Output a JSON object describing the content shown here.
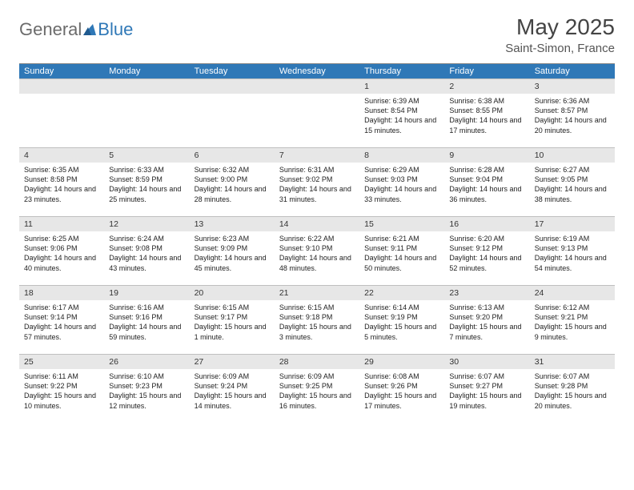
{
  "brand": {
    "part1": "General",
    "part2": "Blue"
  },
  "title": "May 2025",
  "location": "Saint-Simon, France",
  "colors": {
    "header_bg": "#2f78b7",
    "header_text": "#ffffff",
    "daynum_bg": "#e7e7e7",
    "border": "#bfbfbf",
    "text": "#222222",
    "logo_gray": "#6b6b6b",
    "logo_blue": "#2f78b7"
  },
  "weekdays": [
    "Sunday",
    "Monday",
    "Tuesday",
    "Wednesday",
    "Thursday",
    "Friday",
    "Saturday"
  ],
  "weeks": [
    [
      {
        "n": "",
        "sr": "",
        "ss": "",
        "dl": ""
      },
      {
        "n": "",
        "sr": "",
        "ss": "",
        "dl": ""
      },
      {
        "n": "",
        "sr": "",
        "ss": "",
        "dl": ""
      },
      {
        "n": "",
        "sr": "",
        "ss": "",
        "dl": ""
      },
      {
        "n": "1",
        "sr": "Sunrise: 6:39 AM",
        "ss": "Sunset: 8:54 PM",
        "dl": "Daylight: 14 hours and 15 minutes."
      },
      {
        "n": "2",
        "sr": "Sunrise: 6:38 AM",
        "ss": "Sunset: 8:55 PM",
        "dl": "Daylight: 14 hours and 17 minutes."
      },
      {
        "n": "3",
        "sr": "Sunrise: 6:36 AM",
        "ss": "Sunset: 8:57 PM",
        "dl": "Daylight: 14 hours and 20 minutes."
      }
    ],
    [
      {
        "n": "4",
        "sr": "Sunrise: 6:35 AM",
        "ss": "Sunset: 8:58 PM",
        "dl": "Daylight: 14 hours and 23 minutes."
      },
      {
        "n": "5",
        "sr": "Sunrise: 6:33 AM",
        "ss": "Sunset: 8:59 PM",
        "dl": "Daylight: 14 hours and 25 minutes."
      },
      {
        "n": "6",
        "sr": "Sunrise: 6:32 AM",
        "ss": "Sunset: 9:00 PM",
        "dl": "Daylight: 14 hours and 28 minutes."
      },
      {
        "n": "7",
        "sr": "Sunrise: 6:31 AM",
        "ss": "Sunset: 9:02 PM",
        "dl": "Daylight: 14 hours and 31 minutes."
      },
      {
        "n": "8",
        "sr": "Sunrise: 6:29 AM",
        "ss": "Sunset: 9:03 PM",
        "dl": "Daylight: 14 hours and 33 minutes."
      },
      {
        "n": "9",
        "sr": "Sunrise: 6:28 AM",
        "ss": "Sunset: 9:04 PM",
        "dl": "Daylight: 14 hours and 36 minutes."
      },
      {
        "n": "10",
        "sr": "Sunrise: 6:27 AM",
        "ss": "Sunset: 9:05 PM",
        "dl": "Daylight: 14 hours and 38 minutes."
      }
    ],
    [
      {
        "n": "11",
        "sr": "Sunrise: 6:25 AM",
        "ss": "Sunset: 9:06 PM",
        "dl": "Daylight: 14 hours and 40 minutes."
      },
      {
        "n": "12",
        "sr": "Sunrise: 6:24 AM",
        "ss": "Sunset: 9:08 PM",
        "dl": "Daylight: 14 hours and 43 minutes."
      },
      {
        "n": "13",
        "sr": "Sunrise: 6:23 AM",
        "ss": "Sunset: 9:09 PM",
        "dl": "Daylight: 14 hours and 45 minutes."
      },
      {
        "n": "14",
        "sr": "Sunrise: 6:22 AM",
        "ss": "Sunset: 9:10 PM",
        "dl": "Daylight: 14 hours and 48 minutes."
      },
      {
        "n": "15",
        "sr": "Sunrise: 6:21 AM",
        "ss": "Sunset: 9:11 PM",
        "dl": "Daylight: 14 hours and 50 minutes."
      },
      {
        "n": "16",
        "sr": "Sunrise: 6:20 AM",
        "ss": "Sunset: 9:12 PM",
        "dl": "Daylight: 14 hours and 52 minutes."
      },
      {
        "n": "17",
        "sr": "Sunrise: 6:19 AM",
        "ss": "Sunset: 9:13 PM",
        "dl": "Daylight: 14 hours and 54 minutes."
      }
    ],
    [
      {
        "n": "18",
        "sr": "Sunrise: 6:17 AM",
        "ss": "Sunset: 9:14 PM",
        "dl": "Daylight: 14 hours and 57 minutes."
      },
      {
        "n": "19",
        "sr": "Sunrise: 6:16 AM",
        "ss": "Sunset: 9:16 PM",
        "dl": "Daylight: 14 hours and 59 minutes."
      },
      {
        "n": "20",
        "sr": "Sunrise: 6:15 AM",
        "ss": "Sunset: 9:17 PM",
        "dl": "Daylight: 15 hours and 1 minute."
      },
      {
        "n": "21",
        "sr": "Sunrise: 6:15 AM",
        "ss": "Sunset: 9:18 PM",
        "dl": "Daylight: 15 hours and 3 minutes."
      },
      {
        "n": "22",
        "sr": "Sunrise: 6:14 AM",
        "ss": "Sunset: 9:19 PM",
        "dl": "Daylight: 15 hours and 5 minutes."
      },
      {
        "n": "23",
        "sr": "Sunrise: 6:13 AM",
        "ss": "Sunset: 9:20 PM",
        "dl": "Daylight: 15 hours and 7 minutes."
      },
      {
        "n": "24",
        "sr": "Sunrise: 6:12 AM",
        "ss": "Sunset: 9:21 PM",
        "dl": "Daylight: 15 hours and 9 minutes."
      }
    ],
    [
      {
        "n": "25",
        "sr": "Sunrise: 6:11 AM",
        "ss": "Sunset: 9:22 PM",
        "dl": "Daylight: 15 hours and 10 minutes."
      },
      {
        "n": "26",
        "sr": "Sunrise: 6:10 AM",
        "ss": "Sunset: 9:23 PM",
        "dl": "Daylight: 15 hours and 12 minutes."
      },
      {
        "n": "27",
        "sr": "Sunrise: 6:09 AM",
        "ss": "Sunset: 9:24 PM",
        "dl": "Daylight: 15 hours and 14 minutes."
      },
      {
        "n": "28",
        "sr": "Sunrise: 6:09 AM",
        "ss": "Sunset: 9:25 PM",
        "dl": "Daylight: 15 hours and 16 minutes."
      },
      {
        "n": "29",
        "sr": "Sunrise: 6:08 AM",
        "ss": "Sunset: 9:26 PM",
        "dl": "Daylight: 15 hours and 17 minutes."
      },
      {
        "n": "30",
        "sr": "Sunrise: 6:07 AM",
        "ss": "Sunset: 9:27 PM",
        "dl": "Daylight: 15 hours and 19 minutes."
      },
      {
        "n": "31",
        "sr": "Sunrise: 6:07 AM",
        "ss": "Sunset: 9:28 PM",
        "dl": "Daylight: 15 hours and 20 minutes."
      }
    ]
  ]
}
